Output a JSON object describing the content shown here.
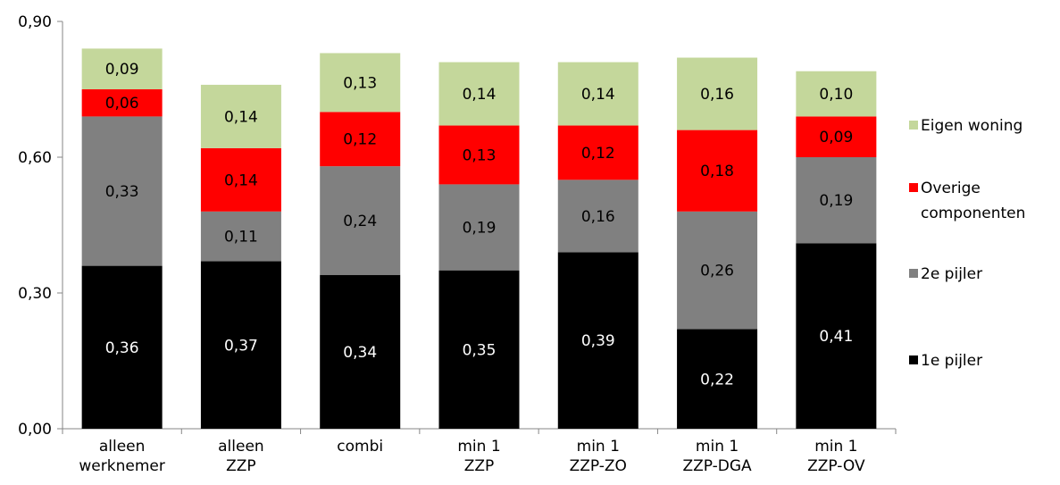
{
  "chart_data": {
    "type": "bar",
    "stacked": true,
    "categories": [
      [
        "alleen",
        "werknemer"
      ],
      [
        "alleen",
        "ZZP"
      ],
      [
        "combi"
      ],
      [
        "min 1",
        "ZZP"
      ],
      [
        "min 1",
        "ZZP-ZO"
      ],
      [
        "min 1",
        "ZZP-DGA"
      ],
      [
        "min 1",
        "ZZP-OV"
      ]
    ],
    "series": [
      {
        "name": "1e pijler",
        "color": "#000000",
        "label_color": "#ffffff",
        "values": [
          0.36,
          0.37,
          0.34,
          0.35,
          0.39,
          0.22,
          0.41
        ],
        "labels": [
          "0,36",
          "0,37",
          "0,34",
          "0,35",
          "0,39",
          "0,22",
          "0,41"
        ]
      },
      {
        "name": "2e pijler",
        "color": "#808080",
        "label_color": "#000000",
        "values": [
          0.33,
          0.11,
          0.24,
          0.19,
          0.16,
          0.26,
          0.19
        ],
        "labels": [
          "0,33",
          "0,11",
          "0,24",
          "0,19",
          "0,16",
          "0,26",
          "0,19"
        ]
      },
      {
        "name": "Overige componenten",
        "legend_lines": [
          "Overige",
          "componenten"
        ],
        "color": "#ff0000",
        "label_color": "#000000",
        "values": [
          0.06,
          0.14,
          0.12,
          0.13,
          0.12,
          0.18,
          0.09
        ],
        "labels": [
          "0,06",
          "0,14",
          "0,12",
          "0,13",
          "0,12",
          "0,18",
          "0,09"
        ]
      },
      {
        "name": "Eigen woning",
        "color": "#c4d79b",
        "label_color": "#000000",
        "values": [
          0.09,
          0.14,
          0.13,
          0.14,
          0.14,
          0.16,
          0.1
        ],
        "labels": [
          "0,09",
          "0,14",
          "0,13",
          "0,14",
          "0,14",
          "0,16",
          "0,10"
        ]
      }
    ],
    "y_ticks": [
      0,
      0.3,
      0.6,
      0.9
    ],
    "y_tick_labels": [
      "0,00",
      "0,30",
      "0,60",
      "0,90"
    ],
    "ylim": [
      0,
      0.9
    ],
    "grid": false,
    "legend_position": "right",
    "legend_order": [
      "Eigen woning",
      "Overige componenten",
      "2e pijler",
      "1e pijler"
    ],
    "title": "",
    "xlabel": "",
    "ylabel": ""
  }
}
